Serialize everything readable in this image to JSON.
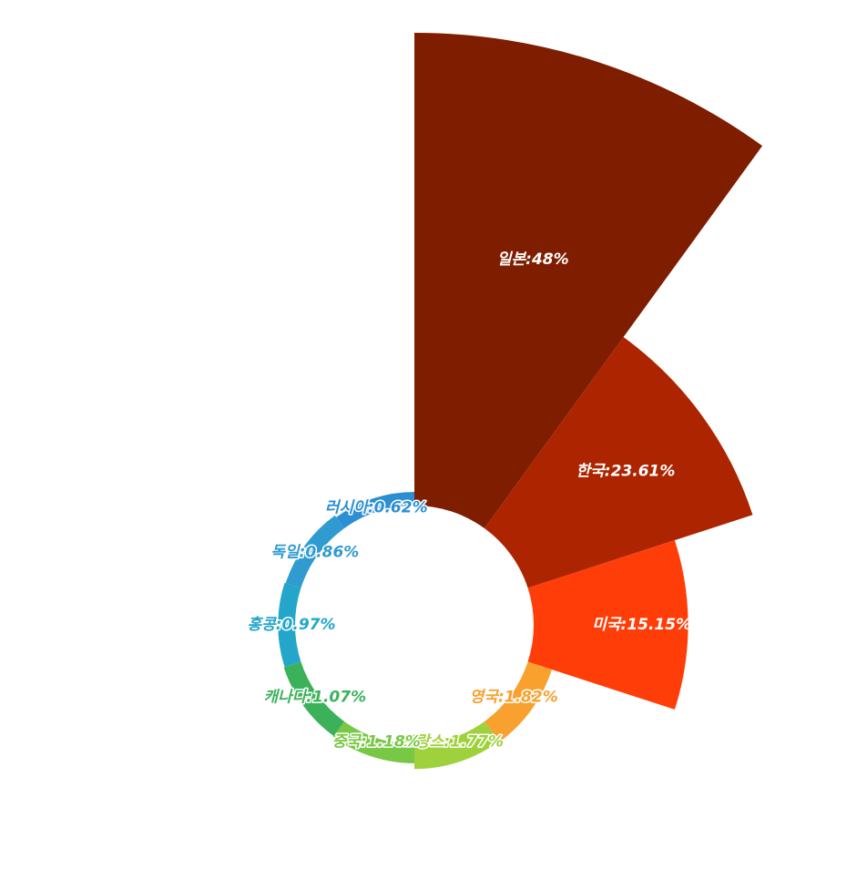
{
  "chart_data": {
    "type": "pie",
    "subtype": "nightingale-rose",
    "label_format": "{name}:{value}%",
    "slices": [
      {
        "name": "일본",
        "value": 48,
        "value_text": "48",
        "color": "#7f1d00",
        "label_position": "inside"
      },
      {
        "name": "한국",
        "value": 23.61,
        "value_text": "23.61",
        "color": "#ad2500",
        "label_position": "inside"
      },
      {
        "name": "미국",
        "value": 15.15,
        "value_text": "15.15",
        "color": "#ff3d08",
        "label_position": "inside"
      },
      {
        "name": "영국",
        "value": 1.82,
        "value_text": "1.82",
        "color": "#f8a12e",
        "label_position": "outside"
      },
      {
        "name": "프랑스",
        "value": 1.77,
        "value_text": "1.77",
        "color": "#9fd13d",
        "label_position": "outside"
      },
      {
        "name": "중국",
        "value": 1.18,
        "value_text": "1.18",
        "color": "#78c846",
        "label_position": "outside"
      },
      {
        "name": "캐나다",
        "value": 1.07,
        "value_text": "1.07",
        "color": "#3bb25a",
        "label_position": "outside"
      },
      {
        "name": "홍콩",
        "value": 0.97,
        "value_text": "0.97",
        "color": "#23a6c9",
        "label_position": "outside"
      },
      {
        "name": "독일",
        "value": 0.86,
        "value_text": "0.86",
        "color": "#2f9bd1",
        "label_position": "outside"
      },
      {
        "name": "러시아",
        "value": 0.62,
        "value_text": "0.62",
        "color": "#2c8fd3",
        "label_position": "outside"
      }
    ]
  }
}
